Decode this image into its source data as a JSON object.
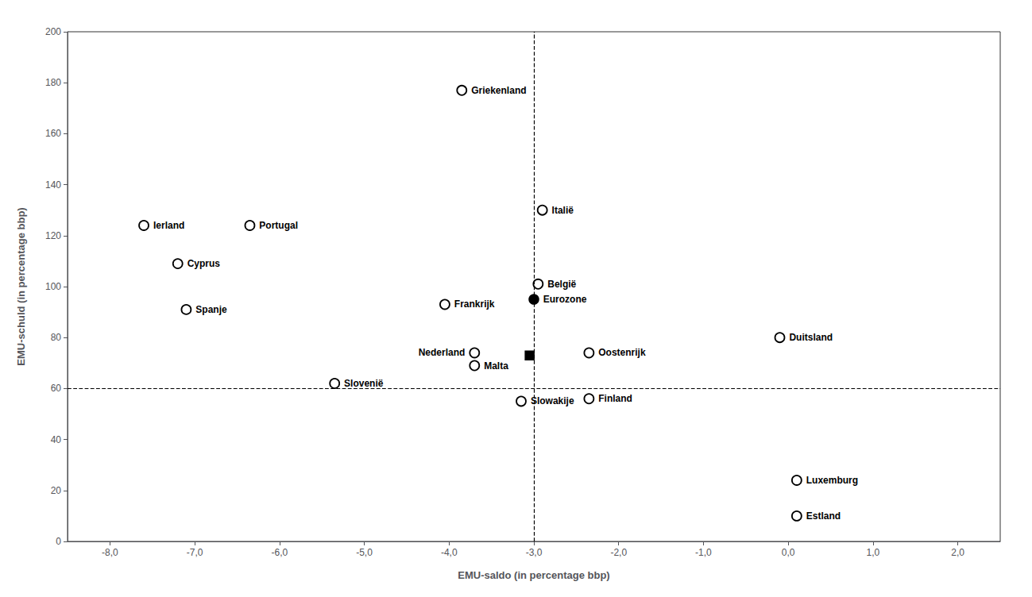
{
  "chart_data": {
    "type": "scatter",
    "xlabel": "EMU-saldo (in percentage bbp)",
    "ylabel": "EMU-schuld (in percentage bbp)",
    "xlim": [
      -8.5,
      2.5
    ],
    "ylim": [
      0,
      200
    ],
    "xticks": [
      {
        "value": -8.0,
        "label": "-8,0"
      },
      {
        "value": -7.0,
        "label": "-7,0"
      },
      {
        "value": -6.0,
        "label": "-6,0"
      },
      {
        "value": -5.0,
        "label": "-5,0"
      },
      {
        "value": -4.0,
        "label": "-4,0"
      },
      {
        "value": -3.0,
        "label": "-3,0"
      },
      {
        "value": -2.0,
        "label": "-2,0"
      },
      {
        "value": -1.0,
        "label": "-1,0"
      },
      {
        "value": 0.0,
        "label": "0,0"
      },
      {
        "value": 1.0,
        "label": "1,0"
      },
      {
        "value": 2.0,
        "label": "2,0"
      }
    ],
    "yticks": [
      0,
      20,
      40,
      60,
      80,
      100,
      120,
      140,
      160,
      180,
      200
    ],
    "grid": false,
    "vline": -3.0,
    "hline": 60.0,
    "series": [
      {
        "marker": "open_circle",
        "color": "#000000",
        "labels": [
          "Griekenland",
          "Ierland",
          "Portugal",
          "Cyprus",
          "Spanje",
          "Italië",
          "Frankrijk",
          "België",
          "Nederland",
          "Malta",
          "Slovenië",
          "Slowakije",
          "Oostenrijk",
          "Finland",
          "Duitsland",
          "Luxemburg",
          "Estland"
        ],
        "x": [
          -3.85,
          -7.6,
          -6.35,
          -7.2,
          -7.1,
          -2.9,
          -4.05,
          -2.95,
          -3.7,
          -3.7,
          -5.35,
          -3.15,
          -2.35,
          -2.35,
          -0.1,
          0.1,
          0.1
        ],
        "y": [
          177,
          124,
          124,
          109,
          91,
          130,
          93,
          101,
          74,
          69,
          62,
          55,
          74,
          56,
          80,
          24,
          10
        ]
      },
      {
        "marker": "circle",
        "color": "#000000",
        "labels": [
          "Eurozone"
        ],
        "x": [
          -3.0
        ],
        "y": [
          95
        ]
      },
      {
        "marker": "square",
        "color": "#000000",
        "x": [
          -3.05
        ],
        "y": [
          73
        ]
      }
    ]
  }
}
